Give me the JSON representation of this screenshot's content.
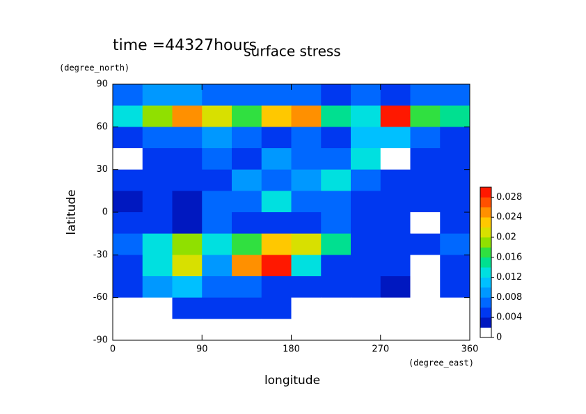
{
  "chart_data": {
    "type": "contour",
    "title": "surface stress",
    "subtitle": "time =44327hours",
    "xlabel": "longitude",
    "ylabel": "latitude",
    "x_unit": "(degree_east)",
    "y_unit": "(degree_north)",
    "xlim": [
      0,
      360
    ],
    "ylim": [
      -90,
      90
    ],
    "xticks": [
      0,
      90,
      180,
      270,
      360
    ],
    "yticks": [
      -90,
      -60,
      -30,
      0,
      30,
      60,
      90
    ],
    "x": [
      15,
      45,
      75,
      105,
      135,
      165,
      195,
      225,
      255,
      285,
      315,
      345
    ],
    "y": [
      82.5,
      67.5,
      52.5,
      37.5,
      22.5,
      7.5,
      -7.5,
      -22.5,
      -37.5,
      -52.5,
      -67.5,
      -82.5
    ],
    "z": [
      [
        0.006,
        0.008,
        0.008,
        0.006,
        0.006,
        0.006,
        0.006,
        0.004,
        0.006,
        0.004,
        0.006,
        0.006
      ],
      [
        0.012,
        0.018,
        0.024,
        0.02,
        0.016,
        0.022,
        0.024,
        0.014,
        0.012,
        0.028,
        0.016,
        0.014
      ],
      [
        0.004,
        0.006,
        0.006,
        0.008,
        0.006,
        0.004,
        0.006,
        0.004,
        0.01,
        0.01,
        0.006,
        0.004
      ],
      [
        0.001,
        0.004,
        0.004,
        0.006,
        0.004,
        0.008,
        0.006,
        0.006,
        0.012,
        0.001,
        0.004,
        0.004
      ],
      [
        0.004,
        0.004,
        0.004,
        0.004,
        0.008,
        0.006,
        0.008,
        0.012,
        0.006,
        0.004,
        0.004,
        0.004
      ],
      [
        0.002,
        0.004,
        0.002,
        0.006,
        0.006,
        0.012,
        0.006,
        0.006,
        0.004,
        0.004,
        0.004,
        0.004
      ],
      [
        0.004,
        0.004,
        0.002,
        0.006,
        0.004,
        0.004,
        0.004,
        0.006,
        0.004,
        0.004,
        0.001,
        0.004
      ],
      [
        0.006,
        0.012,
        0.018,
        0.012,
        0.016,
        0.022,
        0.02,
        0.014,
        0.004,
        0.004,
        0.004,
        0.006
      ],
      [
        0.004,
        0.012,
        0.02,
        0.008,
        0.024,
        0.028,
        0.012,
        0.004,
        0.004,
        0.004,
        0.001,
        0.004
      ],
      [
        0.004,
        0.008,
        0.01,
        0.006,
        0.006,
        0.004,
        0.004,
        0.004,
        0.004,
        0.002,
        0.001,
        0.004
      ],
      [
        0.001,
        0.001,
        0.004,
        0.004,
        0.004,
        0.004,
        0.001,
        0.001,
        0.001,
        0.001,
        0.001,
        0.001
      ],
      [
        0,
        0,
        0,
        0,
        0,
        0,
        0,
        0,
        0,
        0,
        0,
        0
      ]
    ],
    "levels": [
      0,
      0.002,
      0.004,
      0.006,
      0.008,
      0.01,
      0.012,
      0.014,
      0.016,
      0.018,
      0.02,
      0.022,
      0.024,
      0.026,
      0.028,
      0.03
    ],
    "colors": [
      "#ffffff",
      "#0018c0",
      "#0038f0",
      "#0068ff",
      "#0098ff",
      "#00c0ff",
      "#00e0e0",
      "#00e090",
      "#30e040",
      "#90e000",
      "#d8e000",
      "#ffc800",
      "#ff9000",
      "#ff5000",
      "#ff1800"
    ],
    "colorbar_ticks": [
      0,
      0.004,
      0.008,
      0.012,
      0.016,
      0.02,
      0.024,
      0.028
    ]
  }
}
